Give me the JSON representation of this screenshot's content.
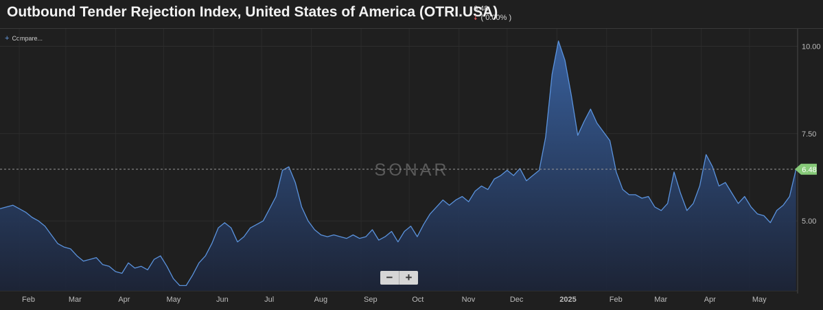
{
  "header": {
    "title": "Outbound Tender Rejection Index, United States of America (OTRI.USA)",
    "last_value": "6.48",
    "change": "( 0.00% )"
  },
  "compare_label": "Compare...",
  "watermark": "SONAR",
  "zoom": {
    "minus": "−",
    "plus": "+"
  },
  "colors": {
    "line": "#5b93dd",
    "area_top": "#3a64a4",
    "area_bottom": "#1c2438",
    "marker": "#86c978"
  },
  "icons": {
    "compare": "plus-icon",
    "change": "down-arrow-icon"
  },
  "chart_data": {
    "type": "area",
    "ylim": [
      3.0,
      10.5
    ],
    "y_ticks": [
      "5.00",
      "7.50",
      "10.00"
    ],
    "last_value": 6.48,
    "last_value_label": "6.48",
    "x_labels": [
      "Feb",
      "Mar",
      "Apr",
      "May",
      "Jun",
      "Jul",
      "Aug",
      "Sep",
      "Oct",
      "Nov",
      "Dec",
      "2025",
      "Feb",
      "Mar",
      "Apr",
      "May"
    ],
    "grid": true,
    "series": [
      {
        "points": [
          [
            "2024-01-20",
            5.35
          ],
          [
            "2024-01-24",
            5.4
          ],
          [
            "2024-01-28",
            5.45
          ],
          [
            "2024-02-01",
            5.35
          ],
          [
            "2024-02-05",
            5.25
          ],
          [
            "2024-02-09",
            5.1
          ],
          [
            "2024-02-13",
            5.0
          ],
          [
            "2024-02-17",
            4.85
          ],
          [
            "2024-02-21",
            4.6
          ],
          [
            "2024-02-25",
            4.35
          ],
          [
            "2024-02-29",
            4.25
          ],
          [
            "2024-03-04",
            4.2
          ],
          [
            "2024-03-08",
            4.0
          ],
          [
            "2024-03-12",
            3.85
          ],
          [
            "2024-03-16",
            3.9
          ],
          [
            "2024-03-20",
            3.95
          ],
          [
            "2024-03-24",
            3.75
          ],
          [
            "2024-03-28",
            3.7
          ],
          [
            "2024-04-01",
            3.55
          ],
          [
            "2024-04-05",
            3.5
          ],
          [
            "2024-04-09",
            3.8
          ],
          [
            "2024-04-13",
            3.65
          ],
          [
            "2024-04-17",
            3.7
          ],
          [
            "2024-04-21",
            3.6
          ],
          [
            "2024-04-25",
            3.9
          ],
          [
            "2024-04-29",
            4.0
          ],
          [
            "2024-05-03",
            3.7
          ],
          [
            "2024-05-07",
            3.35
          ],
          [
            "2024-05-11",
            3.15
          ],
          [
            "2024-05-15",
            3.15
          ],
          [
            "2024-05-19",
            3.45
          ],
          [
            "2024-05-23",
            3.8
          ],
          [
            "2024-05-27",
            4.0
          ],
          [
            "2024-05-31",
            4.35
          ],
          [
            "2024-06-04",
            4.8
          ],
          [
            "2024-06-08",
            4.95
          ],
          [
            "2024-06-12",
            4.8
          ],
          [
            "2024-06-16",
            4.4
          ],
          [
            "2024-06-20",
            4.55
          ],
          [
            "2024-06-24",
            4.8
          ],
          [
            "2024-06-28",
            4.9
          ],
          [
            "2024-07-02",
            5.0
          ],
          [
            "2024-07-06",
            5.35
          ],
          [
            "2024-07-10",
            5.7
          ],
          [
            "2024-07-14",
            6.45
          ],
          [
            "2024-07-18",
            6.55
          ],
          [
            "2024-07-22",
            6.1
          ],
          [
            "2024-07-26",
            5.4
          ],
          [
            "2024-07-30",
            5.0
          ],
          [
            "2024-08-03",
            4.75
          ],
          [
            "2024-08-07",
            4.6
          ],
          [
            "2024-08-11",
            4.55
          ],
          [
            "2024-08-15",
            4.6
          ],
          [
            "2024-08-19",
            4.55
          ],
          [
            "2024-08-23",
            4.5
          ],
          [
            "2024-08-27",
            4.6
          ],
          [
            "2024-08-31",
            4.5
          ],
          [
            "2024-09-04",
            4.55
          ],
          [
            "2024-09-08",
            4.75
          ],
          [
            "2024-09-12",
            4.45
          ],
          [
            "2024-09-16",
            4.55
          ],
          [
            "2024-09-20",
            4.7
          ],
          [
            "2024-09-24",
            4.4
          ],
          [
            "2024-09-28",
            4.7
          ],
          [
            "2024-10-02",
            4.85
          ],
          [
            "2024-10-06",
            4.55
          ],
          [
            "2024-10-10",
            4.9
          ],
          [
            "2024-10-14",
            5.2
          ],
          [
            "2024-10-18",
            5.4
          ],
          [
            "2024-10-22",
            5.6
          ],
          [
            "2024-10-26",
            5.45
          ],
          [
            "2024-10-30",
            5.6
          ],
          [
            "2024-11-03",
            5.7
          ],
          [
            "2024-11-07",
            5.55
          ],
          [
            "2024-11-11",
            5.85
          ],
          [
            "2024-11-15",
            6.0
          ],
          [
            "2024-11-19",
            5.9
          ],
          [
            "2024-11-23",
            6.2
          ],
          [
            "2024-11-27",
            6.3
          ],
          [
            "2024-12-01",
            6.45
          ],
          [
            "2024-12-05",
            6.3
          ],
          [
            "2024-12-09",
            6.5
          ],
          [
            "2024-12-13",
            6.15
          ],
          [
            "2024-12-17",
            6.3
          ],
          [
            "2024-12-21",
            6.45
          ],
          [
            "2024-12-25",
            7.4
          ],
          [
            "2024-12-29",
            9.2
          ],
          [
            "2025-01-02",
            10.15
          ],
          [
            "2025-01-06",
            9.6
          ],
          [
            "2025-01-10",
            8.6
          ],
          [
            "2025-01-14",
            7.45
          ],
          [
            "2025-01-18",
            7.85
          ],
          [
            "2025-01-22",
            8.2
          ],
          [
            "2025-01-26",
            7.8
          ],
          [
            "2025-01-30",
            7.55
          ],
          [
            "2025-02-03",
            7.3
          ],
          [
            "2025-02-07",
            6.4
          ],
          [
            "2025-02-11",
            5.9
          ],
          [
            "2025-02-15",
            5.75
          ],
          [
            "2025-02-19",
            5.75
          ],
          [
            "2025-02-23",
            5.65
          ],
          [
            "2025-02-27",
            5.7
          ],
          [
            "2025-03-03",
            5.4
          ],
          [
            "2025-03-07",
            5.3
          ],
          [
            "2025-03-11",
            5.5
          ],
          [
            "2025-03-15",
            6.4
          ],
          [
            "2025-03-19",
            5.8
          ],
          [
            "2025-03-23",
            5.3
          ],
          [
            "2025-03-27",
            5.5
          ],
          [
            "2025-03-31",
            6.0
          ],
          [
            "2025-04-04",
            6.9
          ],
          [
            "2025-04-08",
            6.55
          ],
          [
            "2025-04-12",
            6.0
          ],
          [
            "2025-04-16",
            6.1
          ],
          [
            "2025-04-20",
            5.8
          ],
          [
            "2025-04-24",
            5.5
          ],
          [
            "2025-04-28",
            5.7
          ],
          [
            "2025-05-02",
            5.4
          ],
          [
            "2025-05-06",
            5.2
          ],
          [
            "2025-05-10",
            5.15
          ],
          [
            "2025-05-14",
            4.95
          ],
          [
            "2025-05-18",
            5.3
          ],
          [
            "2025-05-22",
            5.45
          ],
          [
            "2025-05-26",
            5.7
          ],
          [
            "2025-05-30",
            6.48
          ]
        ]
      }
    ]
  }
}
